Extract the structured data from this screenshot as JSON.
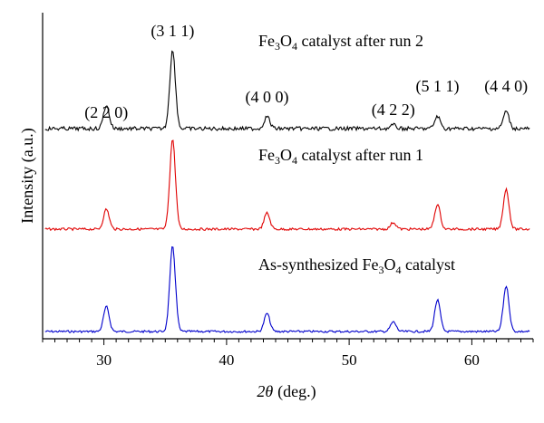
{
  "chart_data": {
    "type": "line",
    "title": "",
    "xlabel_symbol": "2θ",
    "xlabel_unit": "(deg.)",
    "ylabel": "Intensity (a.u.)",
    "xlim": [
      25,
      65
    ],
    "xticks": [
      30,
      40,
      50,
      60
    ],
    "grid": false,
    "legend": "none",
    "series": [
      {
        "name": "As-synthesized Fe3O4 catalyst",
        "label_parts": [
          "As-synthesized Fe",
          "3",
          "O",
          "4",
          " catalyst"
        ],
        "color": "#0000cc",
        "peaks": [
          {
            "x": 30.2,
            "h": 0.26
          },
          {
            "x": 35.6,
            "h": 0.9
          },
          {
            "x": 43.3,
            "h": 0.19
          },
          {
            "x": 53.6,
            "h": 0.1
          },
          {
            "x": 57.2,
            "h": 0.33
          },
          {
            "x": 62.8,
            "h": 0.48
          }
        ]
      },
      {
        "name": "Fe3O4 catalyst after run 1",
        "label_parts": [
          "Fe",
          "3",
          "O",
          "4",
          " catalyst after run 1"
        ],
        "color": "#e00000",
        "peaks": [
          {
            "x": 30.2,
            "h": 0.21
          },
          {
            "x": 35.6,
            "h": 0.95
          },
          {
            "x": 43.3,
            "h": 0.17
          },
          {
            "x": 53.6,
            "h": 0.07
          },
          {
            "x": 57.2,
            "h": 0.26
          },
          {
            "x": 62.8,
            "h": 0.42
          }
        ]
      },
      {
        "name": "Fe3O4 catalyst after run 2",
        "label_parts": [
          "Fe",
          "3",
          "O",
          "4",
          " catalyst after run 2"
        ],
        "color": "#000000",
        "peaks": [
          {
            "x": 30.2,
            "h": 0.27
          },
          {
            "x": 35.6,
            "h": 0.9
          },
          {
            "x": 43.3,
            "h": 0.14
          },
          {
            "x": 53.6,
            "h": 0.04
          },
          {
            "x": 57.2,
            "h": 0.14
          },
          {
            "x": 62.8,
            "h": 0.2
          }
        ]
      }
    ],
    "peak_labels": [
      {
        "text": "(2 2 0)",
        "x": 30.2
      },
      {
        "text": "(3 1 1)",
        "x": 35.6
      },
      {
        "text": "(4 0 0)",
        "x": 43.3
      },
      {
        "text": "(4 2 2)",
        "x": 53.6
      },
      {
        "text": "(5 1 1)",
        "x": 57.2
      },
      {
        "text": "(4 4 0)",
        "x": 62.8
      }
    ]
  }
}
